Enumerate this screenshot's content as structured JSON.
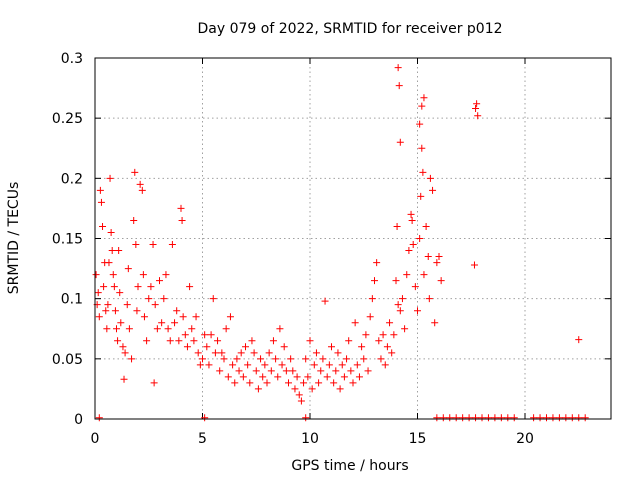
{
  "chart_data": {
    "type": "scatter",
    "title": "Day 079 of 2022, SRMTID for receiver p012",
    "xlabel": "GPS time / hours",
    "ylabel": "SRMTID / TECUs",
    "xlim": [
      0,
      24
    ],
    "ylim": [
      0,
      0.3
    ],
    "xticks": [
      0,
      5,
      10,
      15,
      20
    ],
    "xtick_labels": [
      "0",
      "5",
      "10",
      "15",
      "20"
    ],
    "yticks": [
      0,
      0.05,
      0.1,
      0.15,
      0.2,
      0.25,
      0.3
    ],
    "ytick_labels": [
      "0",
      "0.05",
      "0.1",
      "0.15",
      "0.2",
      "0.25",
      "0.3"
    ],
    "grid": true,
    "marker": "+",
    "series": [
      {
        "name": "p012",
        "color": "#ff0000",
        "points": [
          [
            0.05,
            0.12
          ],
          [
            0.1,
            0.095
          ],
          [
            0.15,
            0.105
          ],
          [
            0.2,
            0.085
          ],
          [
            0.25,
            0.19
          ],
          [
            0.3,
            0.18
          ],
          [
            0.35,
            0.16
          ],
          [
            0.4,
            0.11
          ],
          [
            0.45,
            0.13
          ],
          [
            0.5,
            0.09
          ],
          [
            0.55,
            0.075
          ],
          [
            0.6,
            0.095
          ],
          [
            0.65,
            0.13
          ],
          [
            0.7,
            0.2
          ],
          [
            0.75,
            0.155
          ],
          [
            0.8,
            0.14
          ],
          [
            0.85,
            0.12
          ],
          [
            0.9,
            0.11
          ],
          [
            0.95,
            0.09
          ],
          [
            1.0,
            0.075
          ],
          [
            1.05,
            0.065
          ],
          [
            1.1,
            0.14
          ],
          [
            1.15,
            0.105
          ],
          [
            1.2,
            0.08
          ],
          [
            1.3,
            0.06
          ],
          [
            1.35,
            0.033
          ],
          [
            1.4,
            0.055
          ],
          [
            1.5,
            0.095
          ],
          [
            1.55,
            0.125
          ],
          [
            1.6,
            0.075
          ],
          [
            1.7,
            0.05
          ],
          [
            1.8,
            0.165
          ],
          [
            1.85,
            0.205
          ],
          [
            1.9,
            0.145
          ],
          [
            1.95,
            0.09
          ],
          [
            2.0,
            0.11
          ],
          [
            2.1,
            0.195
          ],
          [
            2.2,
            0.19
          ],
          [
            2.25,
            0.12
          ],
          [
            2.3,
            0.085
          ],
          [
            2.4,
            0.065
          ],
          [
            2.5,
            0.1
          ],
          [
            2.6,
            0.11
          ],
          [
            2.7,
            0.145
          ],
          [
            2.75,
            0.03
          ],
          [
            2.8,
            0.095
          ],
          [
            2.9,
            0.075
          ],
          [
            3.0,
            0.115
          ],
          [
            3.1,
            0.08
          ],
          [
            3.2,
            0.1
          ],
          [
            3.3,
            0.12
          ],
          [
            3.4,
            0.075
          ],
          [
            3.5,
            0.065
          ],
          [
            3.6,
            0.145
          ],
          [
            3.7,
            0.08
          ],
          [
            3.8,
            0.09
          ],
          [
            3.9,
            0.065
          ],
          [
            4.0,
            0.175
          ],
          [
            4.05,
            0.165
          ],
          [
            4.1,
            0.085
          ],
          [
            4.2,
            0.07
          ],
          [
            4.3,
            0.06
          ],
          [
            4.4,
            0.11
          ],
          [
            4.5,
            0.075
          ],
          [
            4.6,
            0.065
          ],
          [
            4.7,
            0.085
          ],
          [
            4.8,
            0.055
          ],
          [
            4.9,
            0.045
          ],
          [
            5.0,
            0.05
          ],
          [
            5.1,
            0.07
          ],
          [
            5.2,
            0.06
          ],
          [
            5.3,
            0.045
          ],
          [
            5.4,
            0.07
          ],
          [
            5.5,
            0.1
          ],
          [
            5.6,
            0.055
          ],
          [
            5.7,
            0.065
          ],
          [
            5.8,
            0.04
          ],
          [
            5.9,
            0.055
          ],
          [
            6.0,
            0.05
          ],
          [
            6.1,
            0.075
          ],
          [
            6.2,
            0.035
          ],
          [
            6.3,
            0.085
          ],
          [
            6.4,
            0.045
          ],
          [
            6.5,
            0.03
          ],
          [
            6.6,
            0.05
          ],
          [
            6.7,
            0.04
          ],
          [
            6.8,
            0.055
          ],
          [
            6.9,
            0.035
          ],
          [
            7.0,
            0.06
          ],
          [
            7.1,
            0.045
          ],
          [
            7.2,
            0.03
          ],
          [
            7.3,
            0.065
          ],
          [
            7.4,
            0.055
          ],
          [
            7.5,
            0.04
          ],
          [
            7.6,
            0.025
          ],
          [
            7.7,
            0.05
          ],
          [
            7.8,
            0.035
          ],
          [
            7.9,
            0.045
          ],
          [
            8.0,
            0.03
          ],
          [
            8.1,
            0.055
          ],
          [
            8.2,
            0.04
          ],
          [
            8.3,
            0.065
          ],
          [
            8.4,
            0.05
          ],
          [
            8.5,
            0.035
          ],
          [
            8.6,
            0.075
          ],
          [
            8.7,
            0.045
          ],
          [
            8.8,
            0.06
          ],
          [
            8.9,
            0.04
          ],
          [
            9.0,
            0.03
          ],
          [
            9.1,
            0.05
          ],
          [
            9.2,
            0.04
          ],
          [
            9.3,
            0.025
          ],
          [
            9.4,
            0.035
          ],
          [
            9.5,
            0.02
          ],
          [
            9.6,
            0.015
          ],
          [
            9.7,
            0.03
          ],
          [
            9.8,
            0.05
          ],
          [
            9.9,
            0.035
          ],
          [
            10.0,
            0.065
          ],
          [
            10.1,
            0.025
          ],
          [
            10.2,
            0.045
          ],
          [
            10.3,
            0.055
          ],
          [
            10.4,
            0.03
          ],
          [
            10.5,
            0.04
          ],
          [
            10.6,
            0.05
          ],
          [
            10.7,
            0.098
          ],
          [
            10.8,
            0.035
          ],
          [
            10.9,
            0.045
          ],
          [
            11.0,
            0.06
          ],
          [
            11.1,
            0.03
          ],
          [
            11.2,
            0.04
          ],
          [
            11.3,
            0.055
          ],
          [
            11.4,
            0.025
          ],
          [
            11.5,
            0.045
          ],
          [
            11.6,
            0.035
          ],
          [
            11.7,
            0.05
          ],
          [
            11.8,
            0.065
          ],
          [
            11.9,
            0.04
          ],
          [
            12.0,
            0.03
          ],
          [
            12.1,
            0.08
          ],
          [
            12.2,
            0.045
          ],
          [
            12.3,
            0.035
          ],
          [
            12.4,
            0.06
          ],
          [
            12.5,
            0.05
          ],
          [
            12.6,
            0.07
          ],
          [
            12.7,
            0.04
          ],
          [
            12.8,
            0.085
          ],
          [
            12.9,
            0.1
          ],
          [
            13.0,
            0.115
          ],
          [
            13.1,
            0.13
          ],
          [
            13.2,
            0.065
          ],
          [
            13.3,
            0.05
          ],
          [
            13.4,
            0.07
          ],
          [
            13.5,
            0.045
          ],
          [
            13.6,
            0.06
          ],
          [
            13.7,
            0.08
          ],
          [
            13.8,
            0.055
          ],
          [
            13.9,
            0.07
          ],
          [
            14.0,
            0.115
          ],
          [
            14.05,
            0.16
          ],
          [
            14.1,
            0.095
          ],
          [
            14.2,
            0.09
          ],
          [
            14.3,
            0.1
          ],
          [
            14.4,
            0.075
          ],
          [
            14.5,
            0.12
          ],
          [
            14.6,
            0.14
          ],
          [
            14.7,
            0.17
          ],
          [
            14.75,
            0.165
          ],
          [
            14.8,
            0.145
          ],
          [
            14.9,
            0.11
          ],
          [
            15.0,
            0.09
          ],
          [
            15.1,
            0.15
          ],
          [
            15.15,
            0.185
          ],
          [
            15.2,
            0.225
          ],
          [
            15.25,
            0.205
          ],
          [
            15.3,
            0.12
          ],
          [
            15.4,
            0.16
          ],
          [
            15.5,
            0.135
          ],
          [
            15.55,
            0.1
          ],
          [
            15.6,
            0.2
          ],
          [
            15.7,
            0.19
          ],
          [
            15.8,
            0.08
          ],
          [
            15.9,
            0.13
          ],
          [
            16.0,
            0.135
          ],
          [
            16.1,
            0.115
          ],
          [
            17.65,
            0.128
          ],
          [
            17.7,
            0.258
          ],
          [
            17.75,
            0.262
          ],
          [
            17.8,
            0.252
          ],
          [
            22.5,
            0.066
          ],
          [
            14.1,
            0.292
          ],
          [
            14.15,
            0.277
          ],
          [
            14.2,
            0.23
          ],
          [
            15.1,
            0.245
          ],
          [
            15.2,
            0.26
          ],
          [
            15.3,
            0.267
          ],
          [
            0.2,
            0.001
          ],
          [
            5.1,
            0.001
          ],
          [
            9.8,
            0.001
          ],
          [
            15.9,
            0.001
          ],
          [
            16.2,
            0.001
          ],
          [
            16.5,
            0.001
          ],
          [
            16.8,
            0.001
          ],
          [
            17.1,
            0.001
          ],
          [
            17.4,
            0.001
          ],
          [
            17.7,
            0.001
          ],
          [
            18.0,
            0.001
          ],
          [
            18.3,
            0.001
          ],
          [
            18.6,
            0.001
          ],
          [
            18.9,
            0.001
          ],
          [
            19.2,
            0.001
          ],
          [
            19.5,
            0.001
          ],
          [
            20.4,
            0.001
          ],
          [
            20.7,
            0.001
          ],
          [
            21.0,
            0.001
          ],
          [
            21.3,
            0.001
          ],
          [
            21.6,
            0.001
          ],
          [
            21.9,
            0.001
          ],
          [
            22.2,
            0.001
          ],
          [
            22.5,
            0.001
          ],
          [
            22.8,
            0.001
          ]
        ]
      }
    ]
  }
}
